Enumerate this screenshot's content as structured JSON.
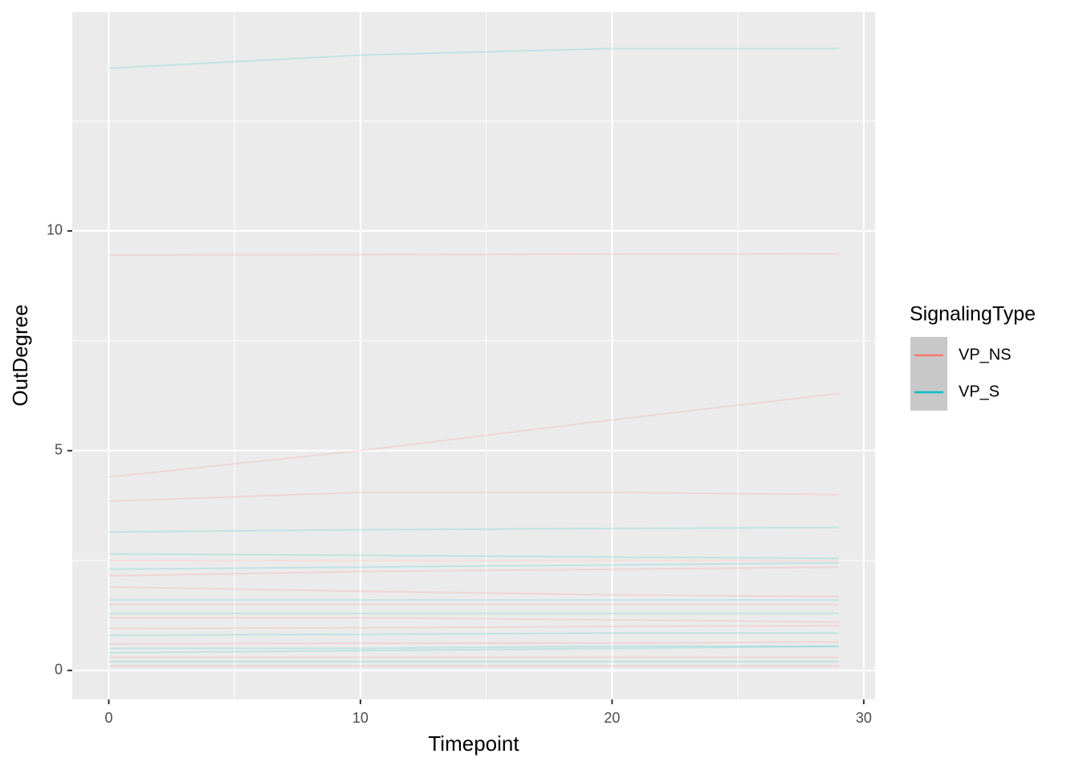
{
  "chart_data": {
    "type": "line",
    "x_label": "Timepoint",
    "y_label": "OutDegree",
    "x": [
      0,
      10,
      20,
      29
    ],
    "xlim": [
      -1.45,
      30.45
    ],
    "ylim": [
      -0.66,
      14.98
    ],
    "xticks": [
      0,
      10,
      20,
      30
    ],
    "yticks": [
      0,
      5,
      10
    ],
    "xminor_ticks": [
      5,
      15,
      25
    ],
    "yminor_ticks": [
      2.5,
      7.5,
      12.5
    ],
    "grid": true,
    "line_opacity": 0.18,
    "legend_title": "SignalingType",
    "groups": [
      {
        "name": "VP_NS",
        "color": "#F8766D",
        "lines": [
          [
            9.45,
            9.46,
            9.47,
            9.48
          ],
          [
            4.4,
            5.0,
            5.7,
            6.3
          ],
          [
            3.85,
            4.05,
            4.05,
            4.0
          ],
          [
            2.5,
            2.5,
            2.5,
            2.5
          ],
          [
            2.15,
            2.25,
            2.3,
            2.35
          ],
          [
            1.9,
            1.8,
            1.72,
            1.68
          ],
          [
            1.5,
            1.5,
            1.5,
            1.5
          ],
          [
            1.2,
            1.2,
            1.15,
            1.1
          ],
          [
            0.95,
            0.97,
            1.0,
            1.02
          ],
          [
            0.6,
            0.62,
            0.62,
            0.65
          ],
          [
            0.3,
            0.3,
            0.3,
            0.3
          ],
          [
            0.1,
            0.1,
            0.1,
            0.1
          ]
        ]
      },
      {
        "name": "VP_S",
        "color": "#00BFC4",
        "lines": [
          [
            13.7,
            14.0,
            14.15,
            14.15
          ],
          [
            3.15,
            3.2,
            3.23,
            3.25
          ],
          [
            2.65,
            2.62,
            2.58,
            2.55
          ],
          [
            2.3,
            2.35,
            2.4,
            2.45
          ],
          [
            1.6,
            1.6,
            1.6,
            1.6
          ],
          [
            1.3,
            1.3,
            1.3,
            1.3
          ],
          [
            0.8,
            0.82,
            0.85,
            0.85
          ],
          [
            0.5,
            0.5,
            0.55,
            0.55
          ],
          [
            0.4,
            0.45,
            0.5,
            0.55
          ],
          [
            0.2,
            0.2,
            0.2,
            0.2
          ]
        ]
      }
    ]
  }
}
